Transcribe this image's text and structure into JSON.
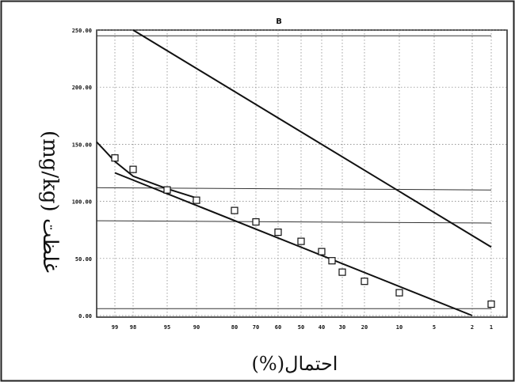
{
  "chart_data": {
    "type": "scatter",
    "title": "B",
    "ylabel": "غلظت (mg/kg)",
    "xlabel": "احتمال(%)",
    "y_ticks": [
      "0.00",
      "50.00",
      "100.00",
      "150.00",
      "200.00",
      "250.00"
    ],
    "ylim": [
      0,
      250
    ],
    "x_ticks": [
      "99",
      "98",
      "95",
      "90",
      "80",
      "70",
      "60",
      "50",
      "40",
      "30",
      "20",
      "10",
      "5",
      "2",
      "1"
    ],
    "x_scale": "probability",
    "grid": true,
    "points": [
      {
        "x": 99,
        "y": 138
      },
      {
        "x": 98,
        "y": 128
      },
      {
        "x": 95,
        "y": 110
      },
      {
        "x": 90,
        "y": 101
      },
      {
        "x": 80,
        "y": 92
      },
      {
        "x": 70,
        "y": 82
      },
      {
        "x": 60,
        "y": 73
      },
      {
        "x": 50,
        "y": 65
      },
      {
        "x": 40,
        "y": 56
      },
      {
        "x": 35,
        "y": 48
      },
      {
        "x": 30,
        "y": 38
      },
      {
        "x": 20,
        "y": 30
      },
      {
        "x": 10,
        "y": 20
      },
      {
        "x": 1,
        "y": 10
      }
    ],
    "lines": [
      {
        "style": "fit",
        "points": [
          [
            98,
            250
          ],
          [
            1,
            60
          ]
        ]
      },
      {
        "style": "fit",
        "points": [
          [
            99,
            125
          ],
          [
            2,
            0
          ]
        ]
      },
      {
        "style": "fit-curve",
        "points": [
          [
            99.5,
            152
          ],
          [
            99,
            135
          ],
          [
            98,
            122
          ],
          [
            95,
            111
          ],
          [
            90,
            103
          ]
        ]
      },
      {
        "style": "threshold",
        "points": [
          [
            99.5,
            245
          ],
          [
            1,
            245
          ]
        ]
      },
      {
        "style": "threshold",
        "points": [
          [
            99.5,
            112
          ],
          [
            1,
            110
          ]
        ]
      },
      {
        "style": "threshold",
        "points": [
          [
            99.5,
            83
          ],
          [
            1,
            81
          ]
        ]
      },
      {
        "style": "threshold",
        "points": [
          [
            99.5,
            6
          ],
          [
            1,
            6
          ]
        ]
      }
    ]
  }
}
